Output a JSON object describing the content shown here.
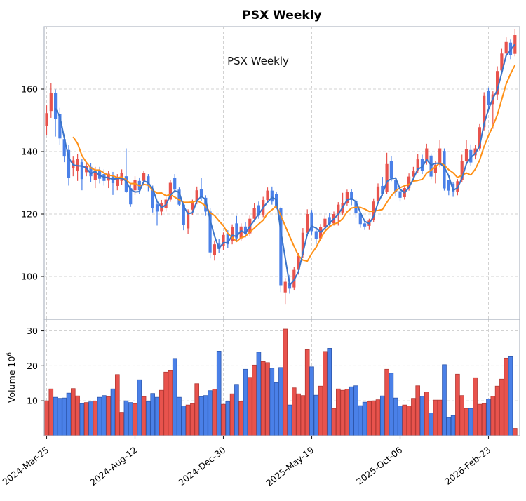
{
  "title": "PSX  Weekly",
  "inner_label": "PSX  Weekly",
  "price_axis": {
    "ticks": [
      100,
      120,
      140,
      160
    ]
  },
  "volume_axis": {
    "ticks": [
      10,
      20,
      30
    ],
    "label_text": "Volume  10",
    "label_sup": "6"
  },
  "x_axis": {
    "tick_labels": [
      "2024-Mar-25",
      "2024-Aug-12",
      "2024-Dec-30",
      "2025-May-19",
      "2025-Oct-06",
      "2026-Feb-23"
    ],
    "tick_positions": [
      0,
      20,
      40,
      60,
      80,
      100
    ]
  },
  "colors": {
    "up": "#e8534d",
    "down": "#4a80e8",
    "up_edge": "#b23934",
    "down_edge": "#2e57ac",
    "ma_fast": "#3b74c9",
    "ma_slow": "#ff9015",
    "grid": "#d2d2d2",
    "spine": "#b0b7c3",
    "text": "#000000"
  },
  "chart_data": {
    "type": "candlestick+volume",
    "title": "PSX  Weekly",
    "interval": "weekly",
    "start_label": "2024-Mar-25",
    "end_label": "2026-Feb-23",
    "ma_fast_period": 3,
    "ma_slow_period": 7,
    "price_ylim": [
      86,
      180
    ],
    "volume_ylim": [
      0,
      33.3
    ],
    "volume_units": "1e6",
    "columns": [
      "open",
      "high",
      "low",
      "close",
      "volume_millions"
    ],
    "candles": [
      [
        148.2,
        154.8,
        145.2,
        152.3,
        10.0
      ],
      [
        153.0,
        162.0,
        150.8,
        158.8,
        13.4
      ],
      [
        158.7,
        159.9,
        144.8,
        150.4,
        11.0
      ],
      [
        152.0,
        154.0,
        142.2,
        144.2,
        10.7
      ],
      [
        144.0,
        145.5,
        136.6,
        138.4,
        10.8
      ],
      [
        140.5,
        142.2,
        129.1,
        131.5,
        12.2
      ],
      [
        134.7,
        138.4,
        132.1,
        137.2,
        13.5
      ],
      [
        133.7,
        139.2,
        130.6,
        137.7,
        11.4
      ],
      [
        136.6,
        137.7,
        127.6,
        131.2,
        9.2
      ],
      [
        133.4,
        136.6,
        132.1,
        135.4,
        9.5
      ],
      [
        135.1,
        136.2,
        130.2,
        132.1,
        9.7
      ],
      [
        130.9,
        135.1,
        128.3,
        133.6,
        9.9
      ],
      [
        133.9,
        135.1,
        129.8,
        131.3,
        11.0
      ],
      [
        132.8,
        134.3,
        129.1,
        130.6,
        11.5
      ],
      [
        130.7,
        133.9,
        128.3,
        132.9,
        11.2
      ],
      [
        132.4,
        133.5,
        126.1,
        129.9,
        13.4
      ],
      [
        129.0,
        132.8,
        127.6,
        131.3,
        17.5
      ],
      [
        130.6,
        134.3,
        129.4,
        133.2,
        6.7
      ],
      [
        132.1,
        141.0,
        126.8,
        127.2,
        10.0
      ],
      [
        128.3,
        129.8,
        122.3,
        123.1,
        9.5
      ],
      [
        127.6,
        132.1,
        126.1,
        130.9,
        9.2
      ],
      [
        130.6,
        131.7,
        126.4,
        127.6,
        16.0
      ],
      [
        130.6,
        133.9,
        129.1,
        133.2,
        11.2
      ],
      [
        132.1,
        132.8,
        127.3,
        129.4,
        9.8
      ],
      [
        127.9,
        129.1,
        120.5,
        121.9,
        12.1
      ],
      [
        123.1,
        123.8,
        116.3,
        120.8,
        11.0
      ],
      [
        120.8,
        124.5,
        119.5,
        123.4,
        13.0
      ],
      [
        121.9,
        125.7,
        120.8,
        124.6,
        18.2
      ],
      [
        124.6,
        131.0,
        123.9,
        130.0,
        18.6
      ],
      [
        131.5,
        132.8,
        126.8,
        127.8,
        22.1
      ],
      [
        127.8,
        128.5,
        122.5,
        123.0,
        11.0
      ],
      [
        123.0,
        123.8,
        114.8,
        116.5,
        8.5
      ],
      [
        115.4,
        121.5,
        113.5,
        120.8,
        8.8
      ],
      [
        121.4,
        124.6,
        119.8,
        124.0,
        9.2
      ],
      [
        124.0,
        128.8,
        123.1,
        127.6,
        14.9
      ],
      [
        128.0,
        131.5,
        124.2,
        125.4,
        11.2
      ],
      [
        125.2,
        126.0,
        119.4,
        120.8,
        11.5
      ],
      [
        120.8,
        122.0,
        105.8,
        107.7,
        12.9
      ],
      [
        106.9,
        111.5,
        105.1,
        110.3,
        13.3
      ],
      [
        110.5,
        112.0,
        107.5,
        108.8,
        24.2
      ],
      [
        109.9,
        114.1,
        108.4,
        113.3,
        9.0
      ],
      [
        113.8,
        114.8,
        109.2,
        110.3,
        9.8
      ],
      [
        111.4,
        116.7,
        110.3,
        115.9,
        12.0
      ],
      [
        117.0,
        119.4,
        111.4,
        112.2,
        14.7
      ],
      [
        112.2,
        117.0,
        111.5,
        116.0,
        9.8
      ],
      [
        116.0,
        117.5,
        112.5,
        113.5,
        19.0
      ],
      [
        113.8,
        119.5,
        113.0,
        118.5,
        16.7
      ],
      [
        118.5,
        123.5,
        117.8,
        122.0,
        20.2
      ],
      [
        122.8,
        124.0,
        118.5,
        119.5,
        23.9
      ],
      [
        119.8,
        125.5,
        119.0,
        124.5,
        21.2
      ],
      [
        124.5,
        128.5,
        123.5,
        127.5,
        20.9
      ],
      [
        127.5,
        128.8,
        123.0,
        124.0,
        19.3
      ],
      [
        126.5,
        127.2,
        121.5,
        122.3,
        15.2
      ],
      [
        122.0,
        122.3,
        95.0,
        97.2,
        19.5
      ],
      [
        94.9,
        99.5,
        91.2,
        98.3,
        30.5
      ],
      [
        98.0,
        100.5,
        94.5,
        96.1,
        8.8
      ],
      [
        96.5,
        103.0,
        95.5,
        102.1,
        13.7
      ],
      [
        102.1,
        107.5,
        100.6,
        106.6,
        12.0
      ],
      [
        106.8,
        115.5,
        106.0,
        114.0,
        11.5
      ],
      [
        114.0,
        121.5,
        113.0,
        120.0,
        24.6
      ],
      [
        120.5,
        121.3,
        113.3,
        114.5,
        19.7
      ],
      [
        114.5,
        115.5,
        110.3,
        112.0,
        11.6
      ],
      [
        112.2,
        116.8,
        111.3,
        115.9,
        14.2
      ],
      [
        115.9,
        119.5,
        115.0,
        118.5,
        24.1
      ],
      [
        119.0,
        120.3,
        115.9,
        116.8,
        25.0
      ],
      [
        117.0,
        120.8,
        116.3,
        120.0,
        7.8
      ],
      [
        120.0,
        123.8,
        116.3,
        123.0,
        13.4
      ],
      [
        120.5,
        126.8,
        119.8,
        123.5,
        13.0
      ],
      [
        123.5,
        127.8,
        122.5,
        127.0,
        13.3
      ],
      [
        127.0,
        128.0,
        122.8,
        124.5,
        14.0
      ],
      [
        124.2,
        124.8,
        118.9,
        120.2,
        14.3
      ],
      [
        120.2,
        120.8,
        115.6,
        116.8,
        8.6
      ],
      [
        117.0,
        117.8,
        114.9,
        116.0,
        9.6
      ],
      [
        116.2,
        118.5,
        114.9,
        117.9,
        9.8
      ],
      [
        118.0,
        125.0,
        117.3,
        124.0,
        10.0
      ],
      [
        124.0,
        129.8,
        123.5,
        128.8,
        10.3
      ],
      [
        129.0,
        131.9,
        125.8,
        126.5,
        11.4
      ],
      [
        127.0,
        139.6,
        126.3,
        136.0,
        19.0
      ],
      [
        137.0,
        138.5,
        130.5,
        131.5,
        17.9
      ],
      [
        131.0,
        131.8,
        125.8,
        127.0,
        10.8
      ],
      [
        127.3,
        128.0,
        124.0,
        125.2,
        8.5
      ],
      [
        125.4,
        129.0,
        124.6,
        128.3,
        8.8
      ],
      [
        128.3,
        133.0,
        127.5,
        132.0,
        8.5
      ],
      [
        132.0,
        135.1,
        130.6,
        133.7,
        10.7
      ],
      [
        134.0,
        139.1,
        133.2,
        137.5,
        14.3
      ],
      [
        137.6,
        139.0,
        132.8,
        133.9,
        11.3
      ],
      [
        136.9,
        142.5,
        135.8,
        141.0,
        12.5
      ],
      [
        138.7,
        139.4,
        131.2,
        132.0,
        6.5
      ],
      [
        133.1,
        136.9,
        129.8,
        135.7,
        10.2
      ],
      [
        135.8,
        143.6,
        135.0,
        141.0,
        10.2
      ],
      [
        140.2,
        141.0,
        127.5,
        128.2,
        20.3
      ],
      [
        130.8,
        131.0,
        126.0,
        127.5,
        5.2
      ],
      [
        129.7,
        130.3,
        125.5,
        127.1,
        5.8
      ],
      [
        127.2,
        131.2,
        126.0,
        130.5,
        17.6
      ],
      [
        131.0,
        139.0,
        130.2,
        137.0,
        11.5
      ],
      [
        137.0,
        143.8,
        136.2,
        140.7,
        7.8
      ],
      [
        140.5,
        142.3,
        135.3,
        136.5,
        7.8
      ],
      [
        138.8,
        142.2,
        137.5,
        141.0,
        16.6
      ],
      [
        141.0,
        148.8,
        140.3,
        147.8,
        9.0
      ],
      [
        147.8,
        159.0,
        146.8,
        157.8,
        9.2
      ],
      [
        159.5,
        160.5,
        153.2,
        155.0,
        10.5
      ],
      [
        155.2,
        159.3,
        147.3,
        158.3,
        11.3
      ],
      [
        158.3,
        167.3,
        156.5,
        165.8,
        14.2
      ],
      [
        166.0,
        172.9,
        164.8,
        171.4,
        16.2
      ],
      [
        171.4,
        176.6,
        170.3,
        175.1,
        22.2
      ],
      [
        174.9,
        175.9,
        169.6,
        170.9,
        22.6
      ],
      [
        171.3,
        179.3,
        170.5,
        177.3,
        2.1
      ]
    ]
  }
}
